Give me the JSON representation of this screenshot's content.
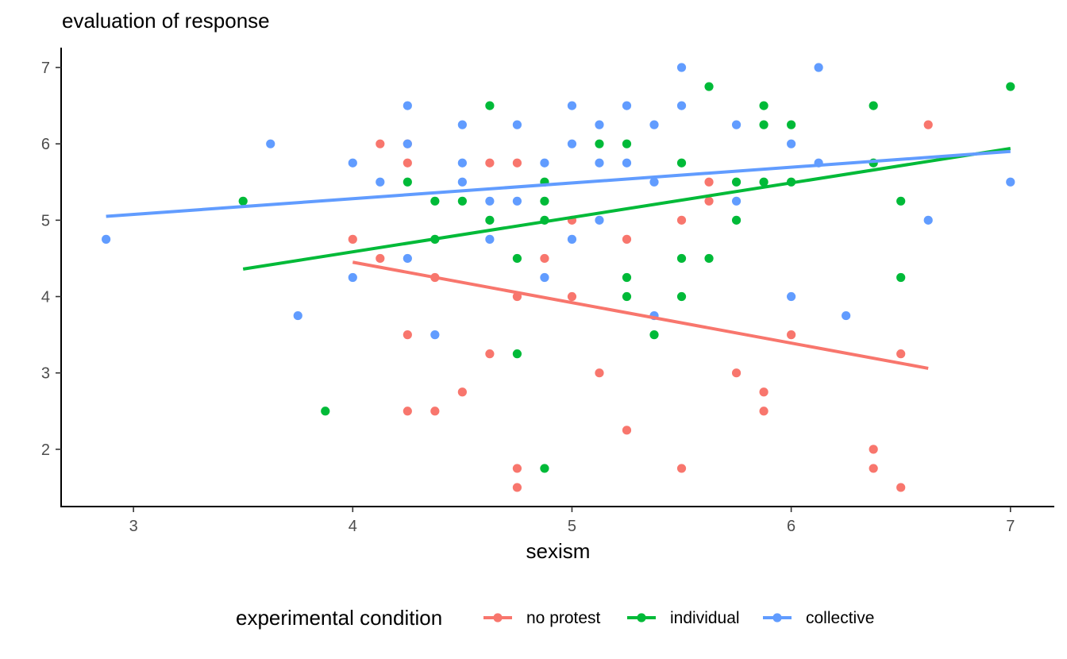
{
  "chart_data": {
    "type": "scatter",
    "title": "",
    "ylabel": "evaluation of response",
    "xlabel": "sexism",
    "xlim": [
      2.67,
      7.2
    ],
    "ylim": [
      1.25,
      7.26
    ],
    "x_ticks": [
      "3",
      "4",
      "5",
      "6",
      "7"
    ],
    "y_ticks": [
      "2",
      "3",
      "4",
      "5",
      "6",
      "7"
    ],
    "grid": false,
    "legend": {
      "title": "experimental condition",
      "position": "bottom"
    },
    "series": [
      {
        "name": "no protest",
        "color": "#F8766D",
        "points": [
          [
            4.0,
            4.75
          ],
          [
            4.125,
            6.0
          ],
          [
            4.125,
            4.5
          ],
          [
            4.25,
            6.0
          ],
          [
            4.25,
            5.75
          ],
          [
            4.25,
            3.5
          ],
          [
            4.25,
            2.5
          ],
          [
            4.375,
            4.25
          ],
          [
            4.375,
            2.5
          ],
          [
            4.5,
            2.75
          ],
          [
            4.625,
            5.75
          ],
          [
            4.625,
            3.25
          ],
          [
            4.75,
            5.75
          ],
          [
            4.75,
            4.0
          ],
          [
            4.75,
            1.75
          ],
          [
            4.75,
            1.5
          ],
          [
            4.875,
            4.5
          ],
          [
            5.0,
            5.0
          ],
          [
            5.0,
            4.0
          ],
          [
            5.125,
            3.0
          ],
          [
            5.25,
            4.75
          ],
          [
            5.25,
            2.25
          ],
          [
            5.5,
            5.0
          ],
          [
            5.5,
            1.75
          ],
          [
            5.625,
            5.5
          ],
          [
            5.625,
            5.25
          ],
          [
            5.75,
            3.0
          ],
          [
            5.875,
            2.75
          ],
          [
            5.875,
            2.5
          ],
          [
            6.0,
            3.5
          ],
          [
            6.375,
            2.0
          ],
          [
            6.375,
            1.75
          ],
          [
            6.5,
            3.25
          ],
          [
            6.5,
            1.5
          ],
          [
            6.625,
            6.25
          ]
        ],
        "fit": [
          [
            4.0,
            4.45
          ],
          [
            6.625,
            3.06
          ]
        ]
      },
      {
        "name": "individual",
        "color": "#00BA38",
        "points": [
          [
            3.5,
            5.25
          ],
          [
            3.875,
            2.5
          ],
          [
            4.25,
            5.5
          ],
          [
            4.375,
            5.25
          ],
          [
            4.375,
            4.75
          ],
          [
            4.5,
            5.25
          ],
          [
            4.625,
            6.5
          ],
          [
            4.625,
            5.0
          ],
          [
            4.75,
            4.5
          ],
          [
            4.75,
            3.25
          ],
          [
            4.875,
            5.5
          ],
          [
            4.875,
            5.25
          ],
          [
            4.875,
            5.0
          ],
          [
            4.875,
            1.75
          ],
          [
            5.125,
            6.0
          ],
          [
            5.25,
            6.0
          ],
          [
            5.25,
            4.25
          ],
          [
            5.25,
            4.0
          ],
          [
            5.375,
            3.5
          ],
          [
            5.5,
            5.75
          ],
          [
            5.5,
            4.5
          ],
          [
            5.5,
            4.0
          ],
          [
            5.625,
            6.75
          ],
          [
            5.625,
            4.5
          ],
          [
            5.75,
            5.5
          ],
          [
            5.75,
            5.0
          ],
          [
            5.875,
            6.5
          ],
          [
            5.875,
            6.25
          ],
          [
            5.875,
            5.5
          ],
          [
            6.0,
            6.25
          ],
          [
            6.0,
            5.5
          ],
          [
            6.375,
            6.5
          ],
          [
            6.375,
            5.75
          ],
          [
            6.5,
            5.25
          ],
          [
            6.5,
            4.25
          ],
          [
            7.0,
            6.75
          ]
        ],
        "fit": [
          [
            3.5,
            4.36
          ],
          [
            7.0,
            5.94
          ]
        ]
      },
      {
        "name": "collective",
        "color": "#619CFF",
        "points": [
          [
            2.875,
            4.75
          ],
          [
            3.625,
            6.0
          ],
          [
            3.75,
            3.75
          ],
          [
            4.0,
            5.75
          ],
          [
            4.0,
            4.25
          ],
          [
            4.125,
            5.5
          ],
          [
            4.25,
            6.5
          ],
          [
            4.25,
            6.0
          ],
          [
            4.25,
            4.5
          ],
          [
            4.375,
            3.5
          ],
          [
            4.5,
            6.25
          ],
          [
            4.5,
            5.75
          ],
          [
            4.5,
            5.5
          ],
          [
            4.625,
            5.25
          ],
          [
            4.625,
            4.75
          ],
          [
            4.75,
            6.25
          ],
          [
            4.75,
            5.25
          ],
          [
            4.875,
            5.75
          ],
          [
            4.875,
            4.25
          ],
          [
            5.0,
            6.5
          ],
          [
            5.0,
            6.0
          ],
          [
            5.0,
            4.75
          ],
          [
            5.125,
            6.25
          ],
          [
            5.125,
            5.75
          ],
          [
            5.125,
            5.0
          ],
          [
            5.25,
            6.5
          ],
          [
            5.25,
            5.75
          ],
          [
            5.375,
            6.25
          ],
          [
            5.375,
            5.5
          ],
          [
            5.375,
            3.75
          ],
          [
            5.5,
            7.0
          ],
          [
            5.5,
            6.5
          ],
          [
            5.75,
            6.25
          ],
          [
            5.75,
            5.25
          ],
          [
            6.0,
            6.0
          ],
          [
            6.0,
            4.0
          ],
          [
            6.125,
            7.0
          ],
          [
            6.125,
            5.75
          ],
          [
            6.25,
            3.75
          ],
          [
            6.625,
            5.0
          ],
          [
            7.0,
            5.5
          ]
        ],
        "fit": [
          [
            2.875,
            5.05
          ],
          [
            7.0,
            5.9
          ]
        ]
      }
    ]
  }
}
